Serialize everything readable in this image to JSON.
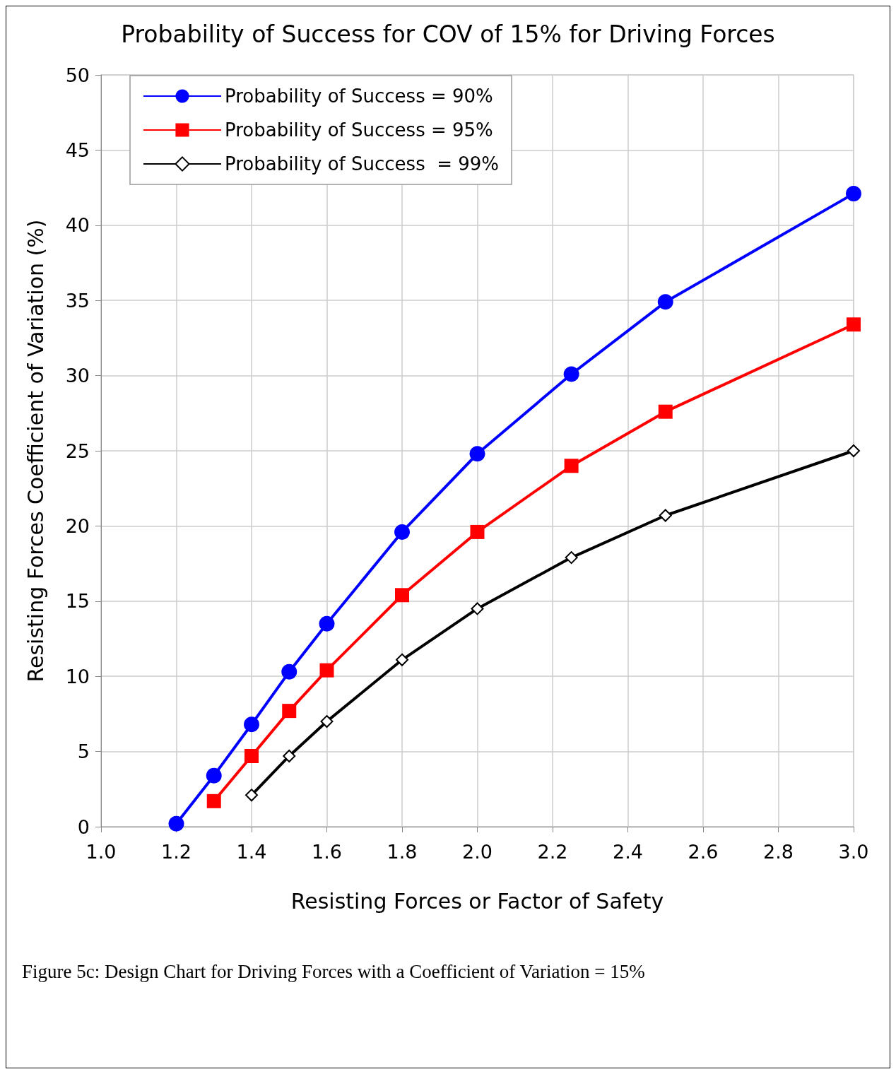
{
  "chart_data": {
    "type": "line",
    "title": "Probability of Success for COV of 15% for Driving Forces",
    "xlabel": "Resisting Forces or Factor of Safety",
    "ylabel": "Resisting Forces Coefficient of Variation (%)",
    "annotations": [
      "Figure 5c: Design Chart for Driving Forces with a Coefficient of Variation = 15%"
    ],
    "xlim": [
      1.0,
      3.0
    ],
    "xticks": [
      {
        "value": 1.0,
        "label": "1.0"
      },
      1.2,
      1.4,
      1.6,
      1.8,
      {
        "value": 2.0,
        "label": "2.0"
      },
      2.2,
      2.4,
      2.6,
      2.8,
      {
        "value": 3.0,
        "label": "3.0"
      }
    ],
    "ylim": [
      0,
      50
    ],
    "yticks": [
      0,
      5,
      10,
      15,
      20,
      25,
      30,
      35,
      40,
      45,
      50
    ],
    "grid": true,
    "legend": "top left",
    "line_style": "solid",
    "series": [
      {
        "name": "Probability of Success = 90%",
        "color": "#0000ff",
        "marker": "circle",
        "x": [
          1.2,
          1.3,
          1.4,
          1.5,
          1.6,
          1.8,
          2.0,
          2.25,
          2.5,
          3.0
        ],
        "values": [
          0.2,
          3.4,
          6.8,
          10.3,
          13.5,
          19.6,
          24.8,
          30.1,
          34.9,
          42.1
        ]
      },
      {
        "name": "Probability of Success = 95%",
        "color": "#ff0000",
        "marker": "square",
        "x": [
          1.3,
          1.4,
          1.5,
          1.6,
          1.8,
          2.0,
          2.25,
          2.5,
          3.0
        ],
        "values": [
          1.7,
          4.7,
          7.7,
          10.4,
          15.4,
          19.6,
          24.0,
          27.6,
          33.4
        ]
      },
      {
        "name": "Probability of Success  = 99%",
        "color": "#000000",
        "marker": "diamond",
        "x": [
          1.4,
          1.5,
          1.6,
          1.8,
          2.0,
          2.25,
          2.5,
          3.0
        ],
        "values": [
          2.1,
          4.7,
          7.0,
          11.1,
          14.5,
          17.9,
          20.7,
          25.0
        ]
      }
    ]
  }
}
